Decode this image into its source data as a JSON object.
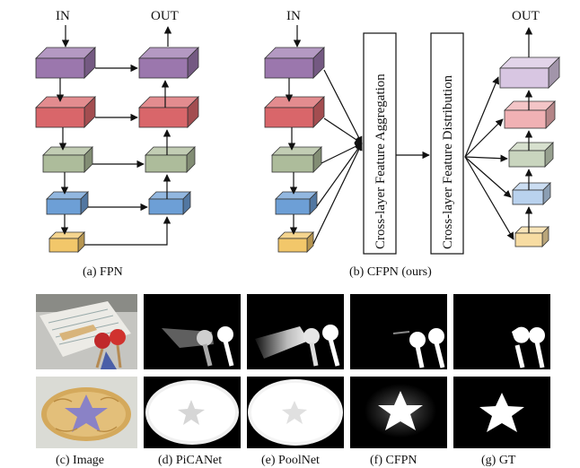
{
  "diagram": {
    "fpn": {
      "in_label": "IN",
      "out_label": "OUT",
      "caption": "(a) FPN"
    },
    "cfpn": {
      "in_label": "IN",
      "out_label": "OUT",
      "aggregation_label": "Cross-layer  Feature  Aggregation",
      "distribution_label": "Cross-layer  Feature  Distribution",
      "caption": "(b) CFPN (ours)"
    },
    "layer_colors": [
      "#9b77ad",
      "#d9666a",
      "#adbc9b",
      "#6d9fd6",
      "#f2c76a"
    ],
    "output_colors": [
      "#d8c6e2",
      "#f0b1b4",
      "#c9d5be",
      "#b9d2ee",
      "#f7dca2"
    ]
  },
  "comparison": {
    "columns": [
      {
        "key": "image",
        "caption": "(c) Image"
      },
      {
        "key": "picanet",
        "caption": "(d) PiCANet"
      },
      {
        "key": "poolnet",
        "caption": "(e) PoolNet"
      },
      {
        "key": "cfpn",
        "caption": "(f) CFPN"
      },
      {
        "key": "gt",
        "caption": "(g) GT"
      }
    ]
  }
}
